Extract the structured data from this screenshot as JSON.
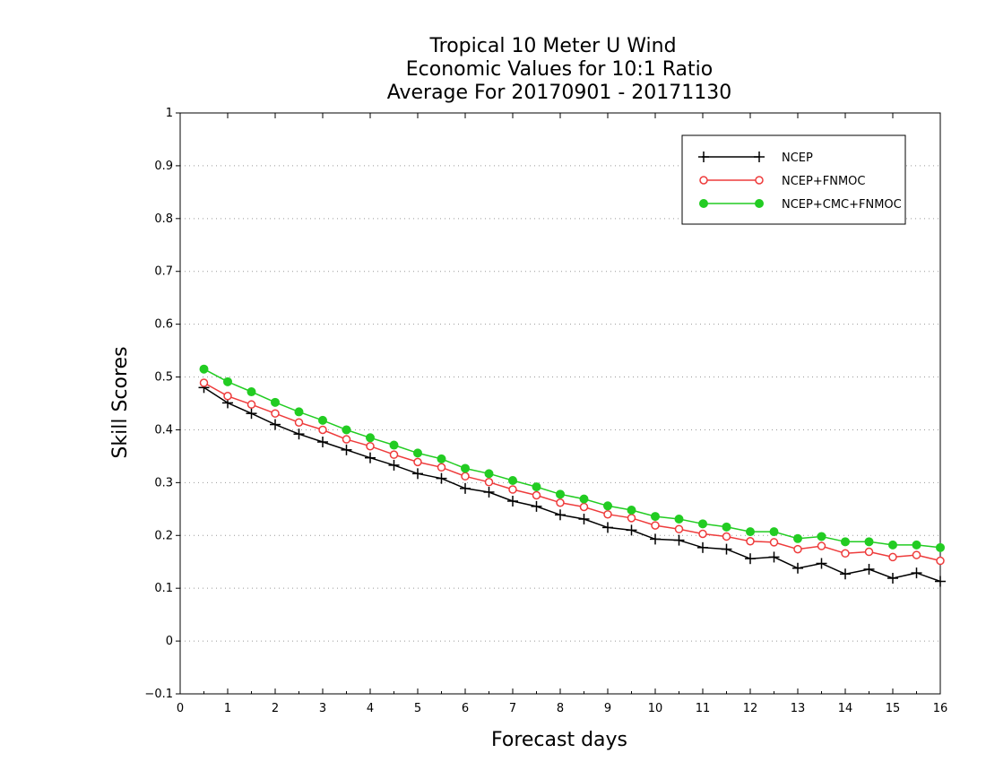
{
  "chart_data": {
    "type": "line",
    "title": [
      "Tropical 10 Meter U Wind",
      "Economic Values for 10:1 Ratio",
      "Average For 20170901 - 20171130"
    ],
    "xlabel": "Forecast days",
    "ylabel": "Skill Scores",
    "xlim": [
      0,
      16
    ],
    "ylim": [
      -0.1,
      1
    ],
    "xticks": [
      "0",
      "1",
      "2",
      "3",
      "4",
      "5",
      "6",
      "7",
      "8",
      "9",
      "10",
      "11",
      "12",
      "13",
      "14",
      "15",
      "16"
    ],
    "yticks": [
      "-0.1",
      "0",
      "0.1",
      "0.2",
      "0.3",
      "0.4",
      "0.5",
      "0.6",
      "0.7",
      "0.8",
      "0.9",
      "1"
    ],
    "grid": "horizontal-dotted",
    "legend_position": "top-right",
    "x": [
      0.5,
      1,
      1.5,
      2,
      2.5,
      3,
      3.5,
      4,
      4.5,
      5,
      5.5,
      6,
      6.5,
      7,
      7.5,
      8,
      8.5,
      9,
      9.5,
      10,
      10.5,
      11,
      11.5,
      12,
      12.5,
      13,
      13.5,
      14,
      14.5,
      15,
      15.5,
      16
    ],
    "series": [
      {
        "name": "NCEP",
        "color": "#000000",
        "marker": "plus",
        "values": [
          0.48,
          0.451,
          0.431,
          0.41,
          0.392,
          0.377,
          0.362,
          0.347,
          0.333,
          0.317,
          0.308,
          0.289,
          0.282,
          0.265,
          0.255,
          0.239,
          0.231,
          0.215,
          0.21,
          0.193,
          0.191,
          0.177,
          0.174,
          0.156,
          0.159,
          0.138,
          0.147,
          0.127,
          0.136,
          0.119,
          0.129,
          0.113
        ]
      },
      {
        "name": "NCEP+FNMOC",
        "color": "#ee3b3b",
        "marker": "open-circle",
        "values": [
          0.489,
          0.464,
          0.448,
          0.431,
          0.414,
          0.4,
          0.382,
          0.369,
          0.353,
          0.339,
          0.329,
          0.312,
          0.301,
          0.287,
          0.276,
          0.262,
          0.254,
          0.24,
          0.233,
          0.219,
          0.212,
          0.203,
          0.198,
          0.189,
          0.187,
          0.174,
          0.18,
          0.166,
          0.169,
          0.159,
          0.163,
          0.152
        ]
      },
      {
        "name": "NCEP+CMC+FNMOC",
        "color": "#22cc22",
        "marker": "filled-circle",
        "values": [
          0.515,
          0.491,
          0.472,
          0.452,
          0.434,
          0.418,
          0.4,
          0.385,
          0.371,
          0.356,
          0.345,
          0.327,
          0.317,
          0.304,
          0.292,
          0.278,
          0.269,
          0.256,
          0.248,
          0.236,
          0.231,
          0.222,
          0.216,
          0.207,
          0.207,
          0.194,
          0.198,
          0.188,
          0.188,
          0.182,
          0.182,
          0.177
        ]
      }
    ]
  }
}
